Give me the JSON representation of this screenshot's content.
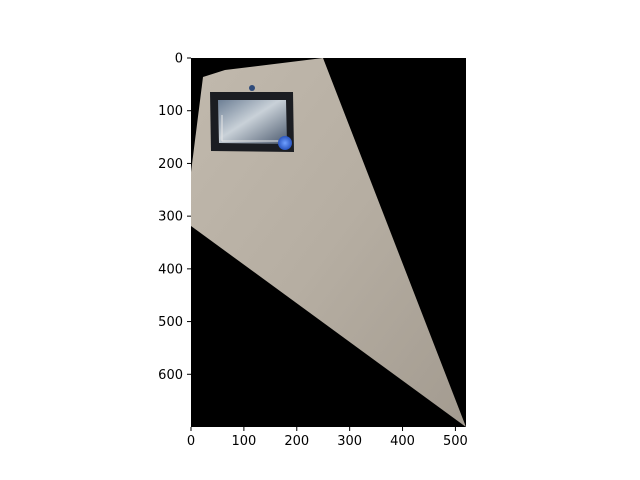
{
  "figure": {
    "x_ticks": [
      "0",
      "100",
      "200",
      "300",
      "400",
      "500"
    ],
    "y_ticks": [
      "0",
      "100",
      "200",
      "300",
      "400",
      "500",
      "600"
    ],
    "image": {
      "content": "warped photo of a beige wall with a framed picture, on black background",
      "background_color": "#000000",
      "wall_color": "#b9b1a5"
    },
    "axes_ranges": {
      "x": [
        0,
        520
      ],
      "y": [
        700,
        0
      ]
    }
  }
}
